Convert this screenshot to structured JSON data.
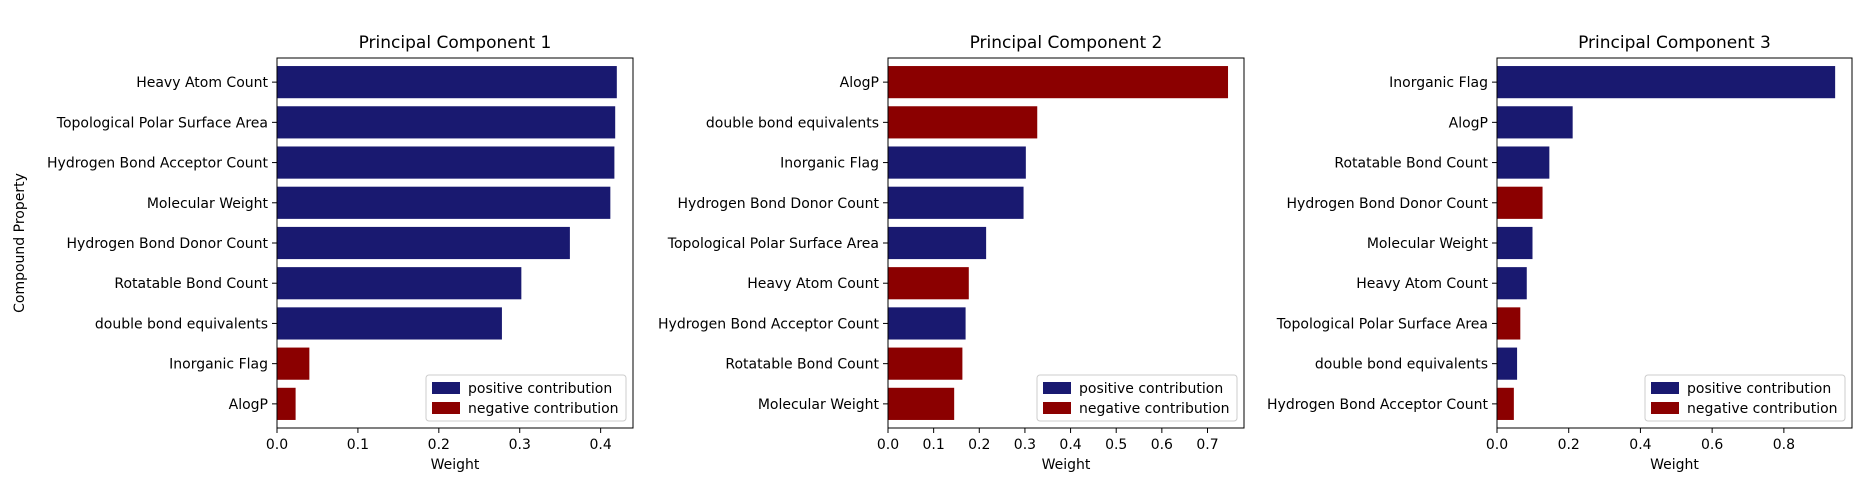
{
  "colors": {
    "positive": "#191970",
    "negative": "#8b0000"
  },
  "legend": {
    "positive": "positive contribution",
    "negative": "negative contribution"
  },
  "chart_data": [
    {
      "type": "bar",
      "orientation": "horizontal",
      "title": "Principal Component 1",
      "xlabel": "Weight",
      "ylabel": "Compound Property",
      "xlim": [
        0,
        0.44
      ],
      "xticks": [
        "0.0",
        "0.1",
        "0.2",
        "0.3",
        "0.4"
      ],
      "legend_position": "lower-right",
      "categories": [
        "Heavy Atom Count",
        "Topological Polar Surface Area",
        "Hydrogen Bond Acceptor Count",
        "Molecular Weight",
        "Hydrogen Bond Donor Count",
        "Rotatable Bond Count",
        "double bond equivalents",
        "Inorganic Flag",
        "AlogP"
      ],
      "values": [
        0.42,
        0.418,
        0.417,
        0.412,
        0.362,
        0.302,
        0.278,
        0.04,
        0.023
      ],
      "sign": [
        "positive",
        "positive",
        "positive",
        "positive",
        "positive",
        "positive",
        "positive",
        "negative",
        "negative"
      ]
    },
    {
      "type": "bar",
      "orientation": "horizontal",
      "title": "Principal Component 2",
      "xlabel": "Weight",
      "ylabel": "",
      "xlim": [
        0,
        0.78
      ],
      "xticks": [
        "0.0",
        "0.1",
        "0.2",
        "0.3",
        "0.4",
        "0.5",
        "0.6",
        "0.7"
      ],
      "legend_position": "lower-right",
      "categories": [
        "AlogP",
        "double bond equivalents",
        "Inorganic Flag",
        "Hydrogen Bond Donor Count",
        "Topological Polar Surface Area",
        "Heavy Atom Count",
        "Hydrogen Bond Acceptor Count",
        "Rotatable Bond Count",
        "Molecular Weight"
      ],
      "values": [
        0.745,
        0.327,
        0.302,
        0.297,
        0.215,
        0.177,
        0.17,
        0.163,
        0.145
      ],
      "sign": [
        "negative",
        "negative",
        "positive",
        "positive",
        "positive",
        "negative",
        "positive",
        "negative",
        "negative"
      ]
    },
    {
      "type": "bar",
      "orientation": "horizontal",
      "title": "Principal Component 3",
      "xlabel": "Weight",
      "ylabel": "",
      "xlim": [
        0,
        0.99
      ],
      "xticks": [
        "0.0",
        "0.2",
        "0.4",
        "0.6",
        "0.8"
      ],
      "legend_position": "lower-right",
      "categories": [
        "Inorganic Flag",
        "AlogP",
        "Rotatable Bond Count",
        "Hydrogen Bond Donor Count",
        "Molecular Weight",
        "Heavy Atom Count",
        "Topological Polar Surface Area",
        "double bond equivalents",
        "Hydrogen Bond Acceptor Count"
      ],
      "values": [
        0.943,
        0.211,
        0.146,
        0.127,
        0.099,
        0.083,
        0.065,
        0.056,
        0.047
      ],
      "sign": [
        "positive",
        "positive",
        "positive",
        "negative",
        "positive",
        "positive",
        "negative",
        "positive",
        "negative"
      ]
    }
  ]
}
